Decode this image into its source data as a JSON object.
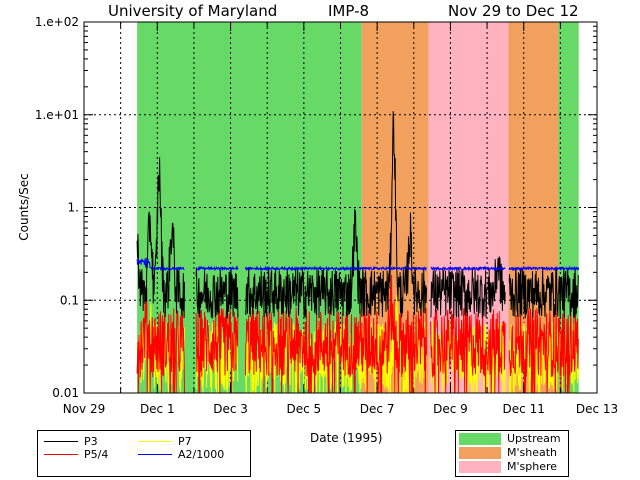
{
  "chart_data": {
    "type": "line",
    "title": {
      "institution": "University of Maryland",
      "instrument": "IMP-8",
      "date_range": "Nov 29 to Dec 12"
    },
    "xlabel": "Date (1995)",
    "ylabel": "Counts/Sec",
    "yscale": "log",
    "ylim": [
      0.01,
      100
    ],
    "xlim_days": [
      0,
      14
    ],
    "x_ticks": [
      {
        "day": 0,
        "label": "Nov 29"
      },
      {
        "day": 2,
        "label": "Dec 1"
      },
      {
        "day": 4,
        "label": "Dec 3"
      },
      {
        "day": 6,
        "label": "Dec 5"
      },
      {
        "day": 8,
        "label": "Dec 7"
      },
      {
        "day": 10,
        "label": "Dec 9"
      },
      {
        "day": 12,
        "label": "Dec 11"
      },
      {
        "day": 14,
        "label": "Dec 13"
      }
    ],
    "y_ticks": [
      {
        "value": 100,
        "label": "1.e+02"
      },
      {
        "value": 10,
        "label": "1.e+01"
      },
      {
        "value": 1,
        "label": "1."
      },
      {
        "value": 0.1,
        "label": "0.1"
      },
      {
        "value": 0.01,
        "label": "0.01"
      }
    ],
    "grid": true,
    "regions": [
      {
        "type": "Upstream",
        "start": 1.45,
        "end": 7.58
      },
      {
        "type": "M'sheath",
        "start": 7.58,
        "end": 9.4
      },
      {
        "type": "M'sphere",
        "start": 9.4,
        "end": 11.58
      },
      {
        "type": "M'sheath",
        "start": 11.58,
        "end": 12.95
      },
      {
        "type": "Upstream",
        "start": 12.95,
        "end": 13.5
      }
    ],
    "region_colors": {
      "Upstream": "#66d966",
      "M'sheath": "#f2a05e",
      "M'sphere": "#ffb3c1"
    },
    "data_range_days": [
      1.45,
      13.5
    ],
    "series": [
      {
        "name": "P3",
        "color": "#000000",
        "typical": 0.12,
        "peaks": [
          {
            "day": 1.45,
            "value": 0.35
          },
          {
            "day": 1.8,
            "value": 0.7
          },
          {
            "day": 2.05,
            "value": 2.4
          },
          {
            "day": 2.4,
            "value": 0.6
          },
          {
            "day": 7.4,
            "value": 0.6
          },
          {
            "day": 8.45,
            "value": 7.5
          },
          {
            "day": 8.9,
            "value": 0.5
          },
          {
            "day": 11.3,
            "value": 0.25
          }
        ]
      },
      {
        "name": "P5/4",
        "color": "#ff0000",
        "typical": 0.035,
        "peaks": [
          {
            "day": 1.7,
            "value": 0.06
          },
          {
            "day": 8.4,
            "value": 0.08
          }
        ]
      },
      {
        "name": "P7",
        "color": "#ffff00",
        "typical": 0.025,
        "peaks": [
          {
            "day": 1.8,
            "value": 0.06
          },
          {
            "day": 8.5,
            "value": 0.07
          }
        ]
      },
      {
        "name": "A2/1000",
        "color": "#0000ff",
        "typical": 0.22,
        "peaks": []
      }
    ],
    "legend": {
      "series_labels": [
        "P3",
        "P7",
        "P5/4",
        "A2/1000"
      ],
      "region_labels": [
        "Upstream",
        "M'sheath",
        "M'sphere"
      ]
    }
  }
}
